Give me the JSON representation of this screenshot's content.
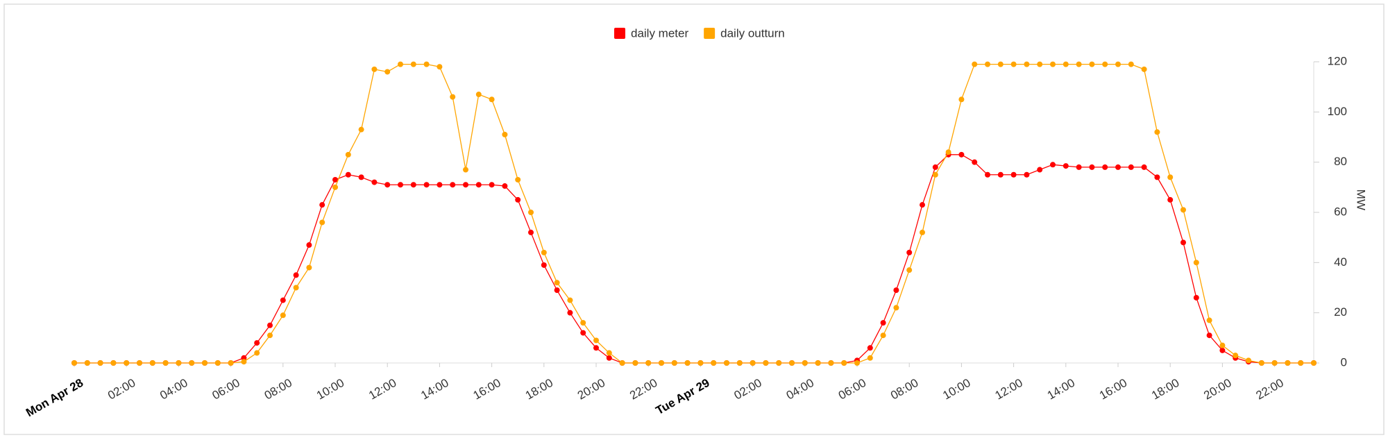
{
  "chart_data": {
    "type": "line",
    "x": [
      0,
      0.5,
      1,
      1.5,
      2,
      2.5,
      3,
      3.5,
      4,
      4.5,
      5,
      5.5,
      6,
      6.5,
      7,
      7.5,
      8,
      8.5,
      9,
      9.5,
      10,
      10.5,
      11,
      11.5,
      12,
      12.5,
      13,
      13.5,
      14,
      14.5,
      15,
      15.5,
      16,
      16.5,
      17,
      17.5,
      18,
      18.5,
      19,
      19.5,
      20,
      20.5,
      21,
      21.5,
      22,
      22.5,
      23,
      23.5,
      24,
      24.5,
      25,
      25.5,
      26,
      26.5,
      27,
      27.5,
      28,
      28.5,
      29,
      29.5,
      30,
      30.5,
      31,
      31.5,
      32,
      32.5,
      33,
      33.5,
      34,
      34.5,
      35,
      35.5,
      36,
      36.5,
      37,
      37.5,
      38,
      38.5,
      39,
      39.5,
      40,
      40.5,
      41,
      41.5,
      42,
      42.5,
      43,
      43.5,
      44,
      44.5,
      45,
      45.5,
      46,
      46.5,
      47,
      47.5
    ],
    "series": [
      {
        "name": "daily meter",
        "color": "#ff0000",
        "values": [
          0,
          0,
          0,
          0,
          0,
          0,
          0,
          0,
          0,
          0,
          0,
          0,
          0,
          2,
          8,
          15,
          25,
          35,
          47,
          63,
          73,
          75,
          74,
          72,
          71,
          71,
          71,
          71,
          71,
          71,
          71,
          71,
          71,
          70.5,
          65,
          52,
          39,
          29,
          20,
          12,
          6,
          2,
          0,
          0,
          0,
          0,
          0,
          0,
          0,
          0,
          0,
          0,
          0,
          0,
          0,
          0,
          0,
          0,
          0,
          0,
          1,
          6,
          16,
          29,
          44,
          63,
          78,
          83,
          83,
          80,
          75,
          75,
          75,
          75,
          77,
          79,
          78.5,
          78,
          78,
          78,
          78,
          78,
          78,
          74,
          65,
          48,
          26,
          11,
          5,
          2,
          0.5,
          0,
          0,
          0,
          0,
          0
        ]
      },
      {
        "name": "daily outturn",
        "color": "#ffa500",
        "values": [
          0,
          0,
          0,
          0,
          0,
          0,
          0,
          0,
          0,
          0,
          0,
          0,
          0,
          0.5,
          4,
          11,
          19,
          30,
          38,
          56,
          70,
          83,
          93,
          117,
          116,
          119,
          119,
          119,
          118,
          106,
          77,
          107,
          105,
          91,
          73,
          60,
          44,
          32,
          25,
          16,
          9,
          4,
          0,
          0,
          0,
          0,
          0,
          0,
          0,
          0,
          0,
          0,
          0,
          0,
          0,
          0,
          0,
          0,
          0,
          0,
          0,
          2,
          11,
          22,
          37,
          52,
          75,
          84,
          105,
          119,
          119,
          119,
          119,
          119,
          119,
          119,
          119,
          119,
          119,
          119,
          119,
          119,
          117,
          92,
          74,
          61,
          40,
          17,
          7,
          3,
          1,
          0,
          0,
          0,
          0,
          0
        ]
      }
    ],
    "xlim": [
      0,
      47.5
    ],
    "xticks": [
      {
        "value": 0,
        "label": "Mon Apr 28"
      },
      {
        "value": 2,
        "label": "02:00"
      },
      {
        "value": 4,
        "label": "04:00"
      },
      {
        "value": 6,
        "label": "06:00"
      },
      {
        "value": 8,
        "label": "08:00"
      },
      {
        "value": 10,
        "label": "10:00"
      },
      {
        "value": 12,
        "label": "12:00"
      },
      {
        "value": 14,
        "label": "14:00"
      },
      {
        "value": 16,
        "label": "16:00"
      },
      {
        "value": 18,
        "label": "18:00"
      },
      {
        "value": 20,
        "label": "20:00"
      },
      {
        "value": 22,
        "label": "22:00"
      },
      {
        "value": 24,
        "label": "Tue Apr 29"
      },
      {
        "value": 26,
        "label": "02:00"
      },
      {
        "value": 28,
        "label": "04:00"
      },
      {
        "value": 30,
        "label": "06:00"
      },
      {
        "value": 32,
        "label": "08:00"
      },
      {
        "value": 34,
        "label": "10:00"
      },
      {
        "value": 36,
        "label": "12:00"
      },
      {
        "value": 38,
        "label": "14:00"
      },
      {
        "value": 40,
        "label": "16:00"
      },
      {
        "value": 42,
        "label": "18:00"
      },
      {
        "value": 44,
        "label": "20:00"
      },
      {
        "value": 46,
        "label": "22:00"
      }
    ],
    "ylim": [
      0,
      120
    ],
    "yticks": [
      0,
      20,
      40,
      60,
      80,
      100,
      120
    ],
    "y_label": "MW",
    "legend": "top"
  }
}
